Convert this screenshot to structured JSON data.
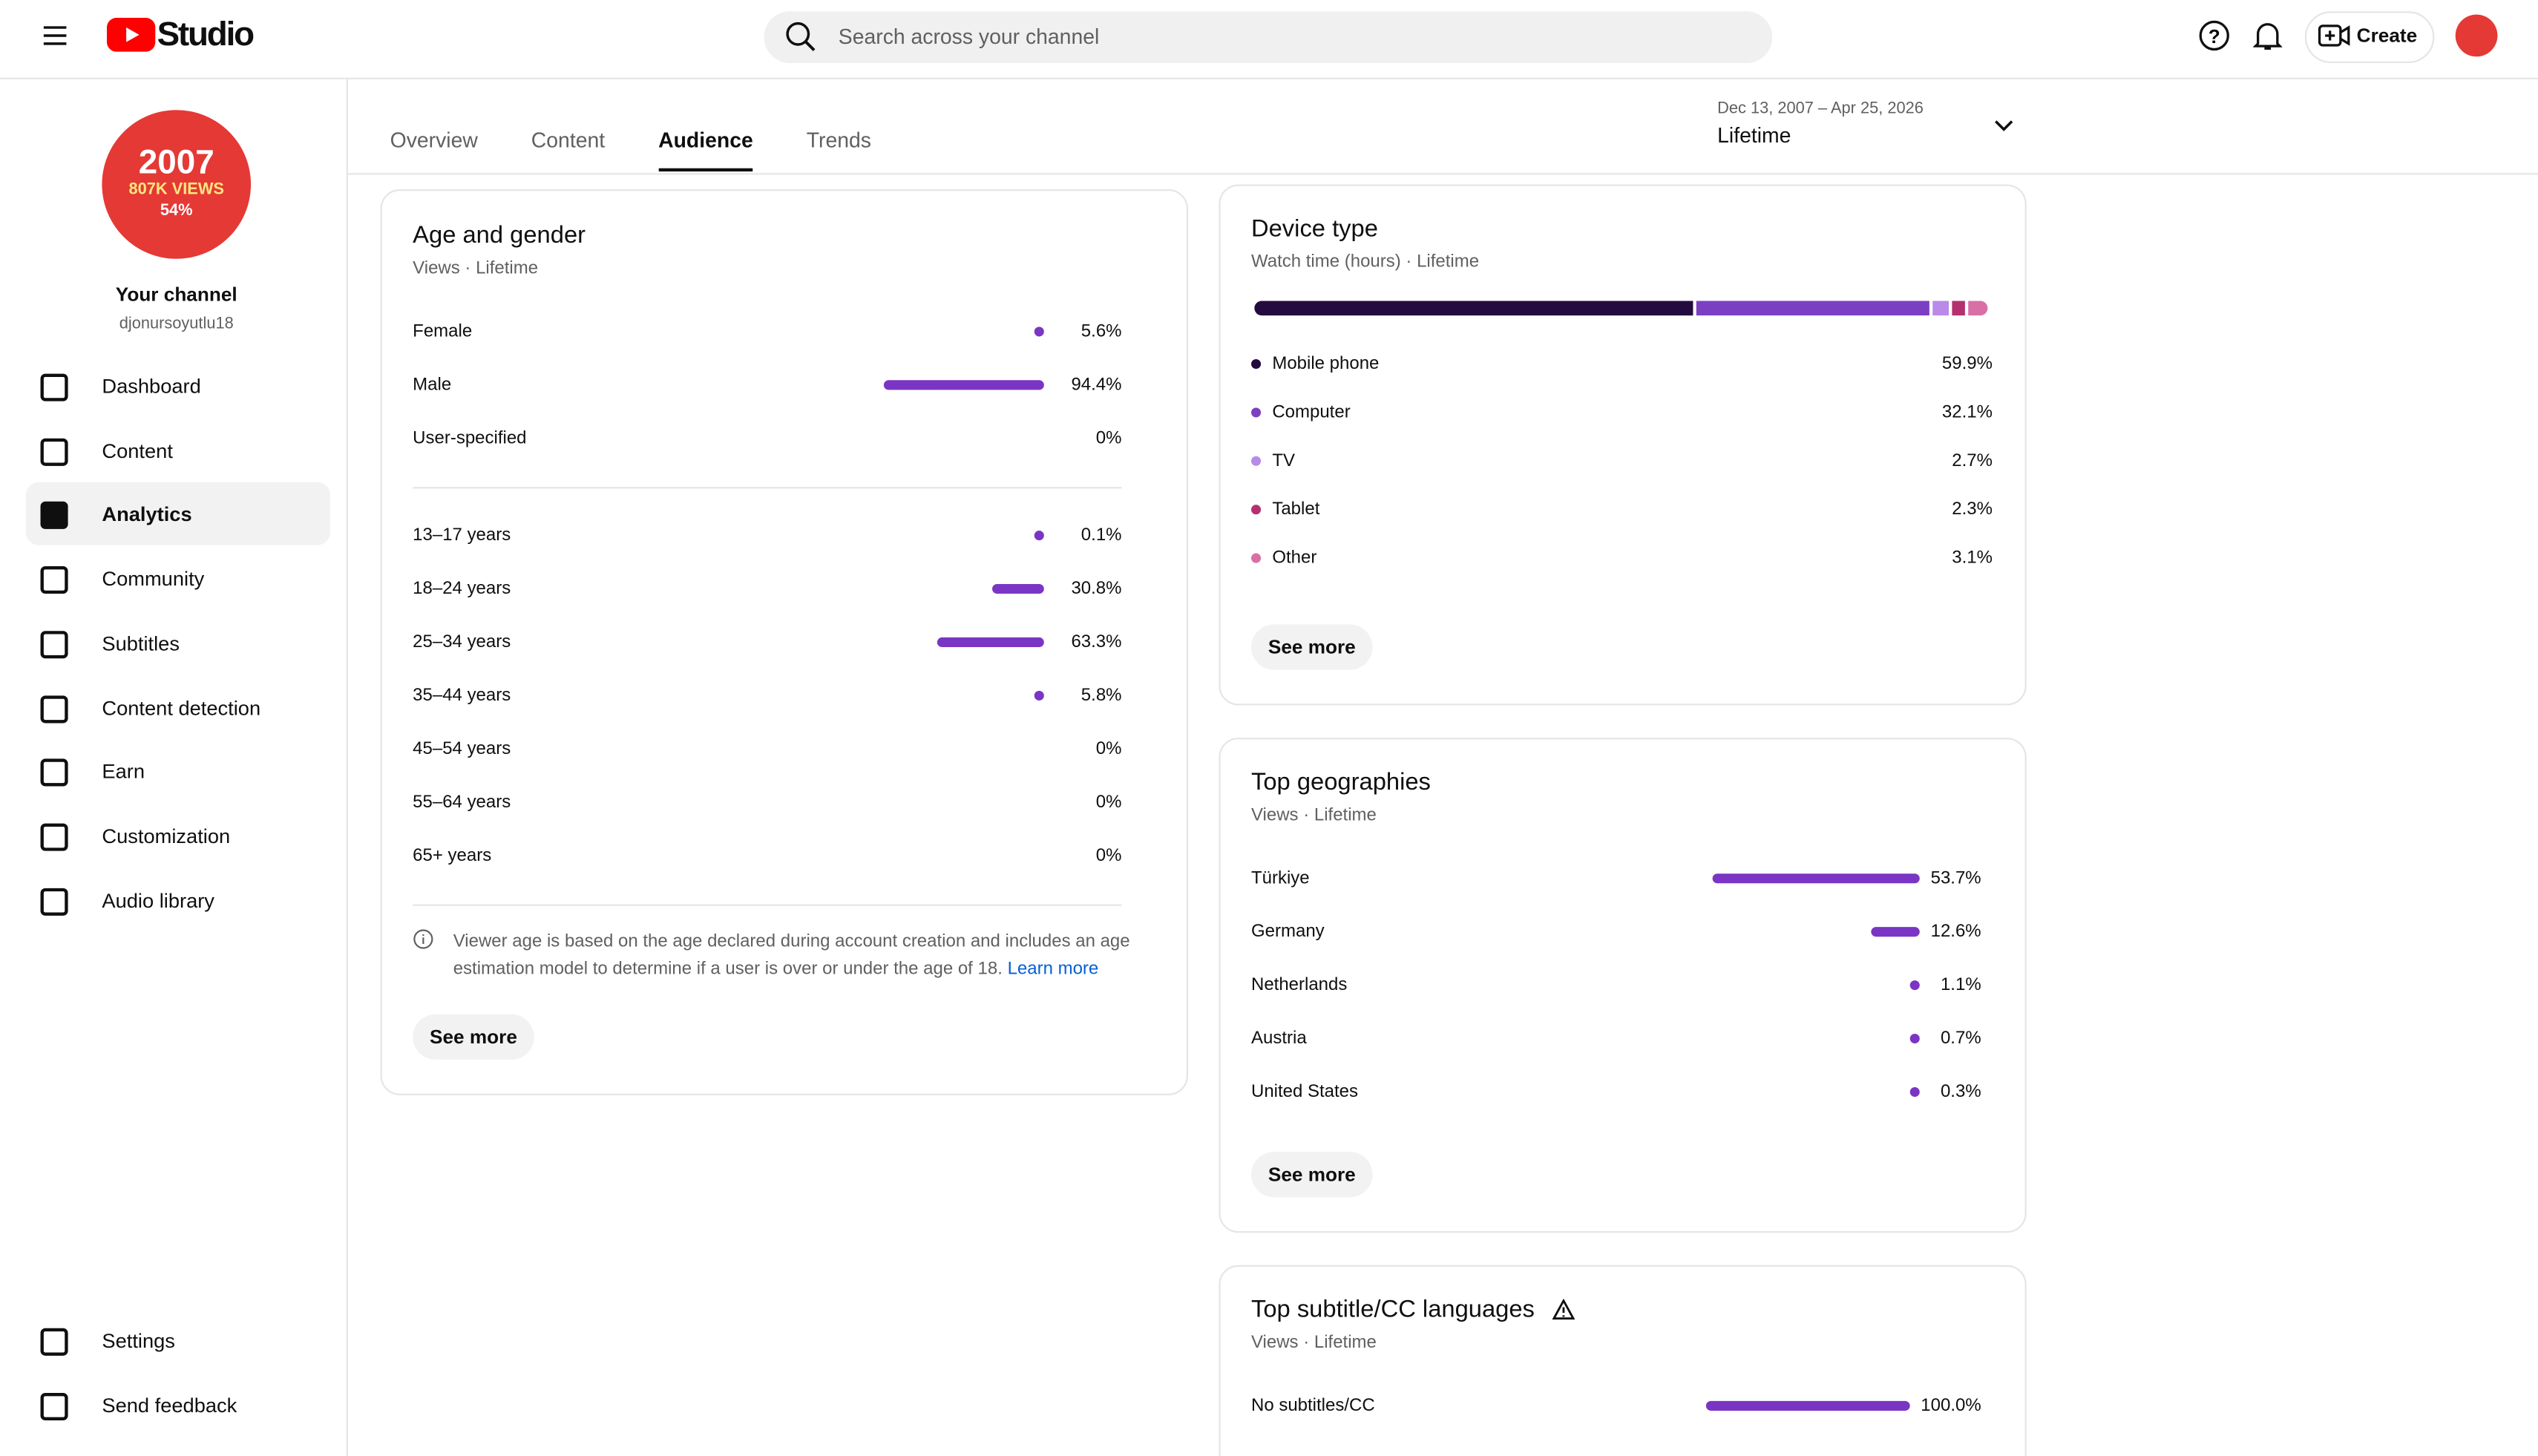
{
  "header": {
    "app_name": "Studio",
    "search_placeholder": "Search across your channel",
    "create_label": "Create"
  },
  "channel": {
    "badge_lines": [
      "2007",
      "807K VIEWS",
      "54%"
    ],
    "name": "Your channel",
    "handle": "djonursoyutlu18"
  },
  "nav": {
    "items": [
      "Dashboard",
      "Content",
      "Analytics",
      "Community",
      "Subtitles",
      "Content detection",
      "Earn",
      "Customization",
      "Audio library"
    ],
    "active": 2,
    "bottom_items": [
      "Settings",
      "Send feedback"
    ]
  },
  "tabs": {
    "items": [
      "Overview",
      "Content",
      "Audience",
      "Trends"
    ],
    "active": 2
  },
  "date_range": {
    "range": "Dec 13, 2007 – Apr 25, 2026",
    "label": "Lifetime"
  },
  "age_gender": {
    "title": "Age and gender",
    "subtitle": "Views · Lifetime",
    "color": "#7b35c4",
    "gender": [
      {
        "label": "Female",
        "value": 5.6,
        "value_label": "5.6%"
      },
      {
        "label": "Male",
        "value": 94.4,
        "value_label": "94.4%"
      },
      {
        "label": "User-specified",
        "value": 0,
        "value_label": "0%"
      }
    ],
    "age": [
      {
        "label": "13–17 years",
        "value": 0.1,
        "value_label": "0.1%"
      },
      {
        "label": "18–24 years",
        "value": 30.8,
        "value_label": "30.8%"
      },
      {
        "label": "25–34 years",
        "value": 63.3,
        "value_label": "63.3%"
      },
      {
        "label": "35–44 years",
        "value": 5.8,
        "value_label": "5.8%"
      },
      {
        "label": "45–54 years",
        "value": 0,
        "value_label": "0%"
      },
      {
        "label": "55–64 years",
        "value": 0,
        "value_label": "0%"
      },
      {
        "label": "65+ years",
        "value": 0,
        "value_label": "0%"
      }
    ],
    "note": "Viewer age is based on the age declared during account creation and includes an age estimation model to determine if a user is over or under the age of 18.",
    "link": "Learn more",
    "button": "See more"
  },
  "device_type": {
    "title": "Device type",
    "subtitle": "Watch time (hours) · Lifetime",
    "segments": [
      {
        "label": "Mobile phone",
        "value": 59.9,
        "value_label": "59.9%",
        "color": "#230a3f"
      },
      {
        "label": "Computer",
        "value": 32.1,
        "value_label": "32.1%",
        "color": "#7b3fc4"
      },
      {
        "label": "TV",
        "value": 2.7,
        "value_label": "2.7%",
        "color": "#b98ae8"
      },
      {
        "label": "Tablet",
        "value": 2.3,
        "value_label": "2.3%",
        "color": "#b4306f"
      },
      {
        "label": "Other",
        "value": 3.1,
        "value_label": "3.1%",
        "color": "#d870a6"
      }
    ],
    "button": "See more"
  },
  "geographies": {
    "title": "Top geographies",
    "subtitle": "Views · Lifetime",
    "color": "#7b35c4",
    "rows": [
      {
        "label": "Türkiye",
        "value": 53.7,
        "value_label": "53.7%"
      },
      {
        "label": "Germany",
        "value": 12.6,
        "value_label": "12.6%"
      },
      {
        "label": "Netherlands",
        "value": 1.1,
        "value_label": "1.1%"
      },
      {
        "label": "Austria",
        "value": 0.7,
        "value_label": "0.7%"
      },
      {
        "label": "United States",
        "value": 0.3,
        "value_label": "0.3%"
      }
    ],
    "button": "See more"
  },
  "subtitle_languages": {
    "title": "Top subtitle/CC languages",
    "subtitle": "Views · Lifetime",
    "color": "#7b35c4",
    "rows": [
      {
        "label": "No subtitles/CC",
        "value": 100,
        "value_label": "100.0%"
      }
    ]
  }
}
